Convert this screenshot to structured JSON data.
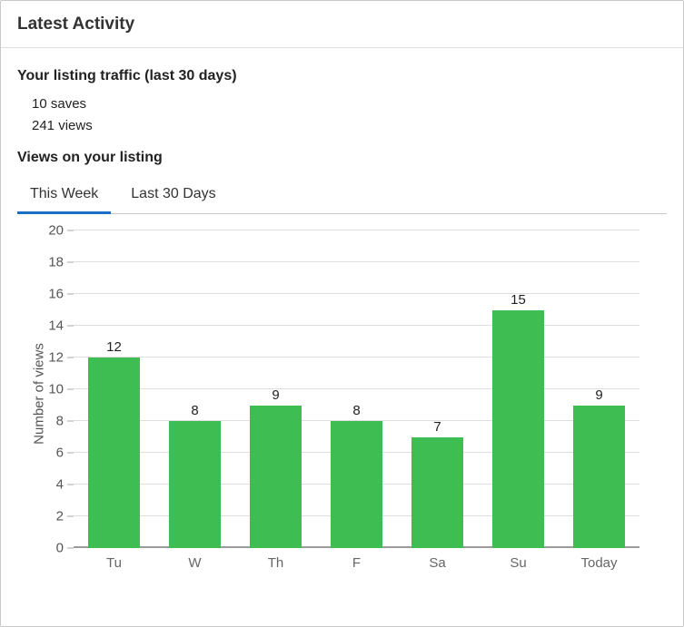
{
  "card": {
    "title": "Latest Activity"
  },
  "traffic": {
    "heading": "Your listing traffic (last 30 days)",
    "stats": [
      {
        "label": "10 saves"
      },
      {
        "label": "241 views"
      }
    ]
  },
  "views_section": {
    "heading": "Views on your listing",
    "tabs": [
      {
        "label": "This Week",
        "active": true
      },
      {
        "label": "Last 30 Days",
        "active": false
      }
    ]
  },
  "chart_data": {
    "type": "bar",
    "categories": [
      "Tu",
      "W",
      "Th",
      "F",
      "Sa",
      "Su",
      "Today"
    ],
    "values": [
      12,
      8,
      9,
      8,
      7,
      15,
      9
    ],
    "title": "",
    "xlabel": "",
    "ylabel": "Number of views",
    "ylim": [
      0,
      20
    ],
    "ytick_step": 2,
    "grid": true,
    "legend": false,
    "value_labels": true,
    "bar_color": "#3ebe52"
  },
  "colors": {
    "accent_blue": "#1b6ec2",
    "bar_green": "#3ebe52",
    "gridline_gray": "#dedede",
    "axis_gray": "#9b9b9b"
  }
}
